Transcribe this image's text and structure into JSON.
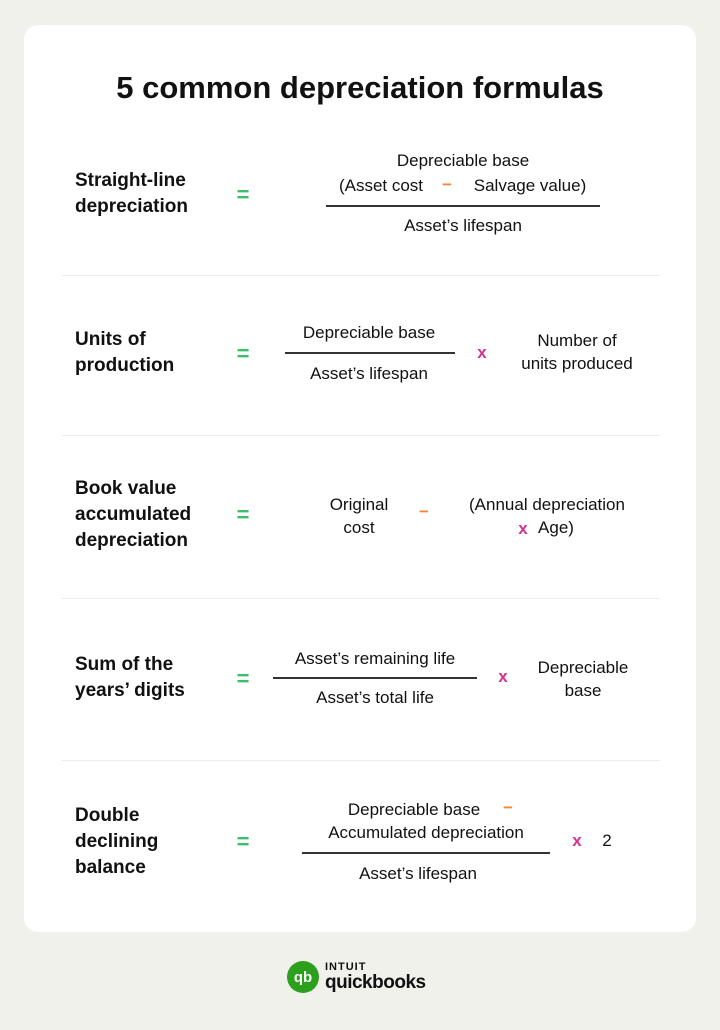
{
  "title": "5 common depreciation formulas",
  "symbols": {
    "equals": "=",
    "minus": "−",
    "times": "x"
  },
  "colors": {
    "equals": "#3dbd6e",
    "minus": "#f5863a",
    "times": "#d4308f",
    "brand": "#2ca01c"
  },
  "formulas": [
    {
      "label": [
        "Straight-line",
        "depreciation"
      ],
      "numerator": [
        "Depreciable base",
        "(Asset cost",
        "Salvage value)"
      ],
      "denominator": "Asset’s lifespan"
    },
    {
      "label": [
        "Units of",
        "production"
      ],
      "numerator": "Depreciable base",
      "denominator": "Asset’s lifespan",
      "multiplier": [
        "Number of",
        "units produced"
      ]
    },
    {
      "label": [
        "Book value",
        "accumulated",
        "depreciation"
      ],
      "left": [
        "Original",
        "cost"
      ],
      "right": [
        "(Annual depreciation",
        "Age)"
      ]
    },
    {
      "label": [
        "Sum of the",
        "years’ digits"
      ],
      "numerator": "Asset’s remaining life",
      "denominator": "Asset’s total life",
      "multiplier": [
        "Depreciable",
        "base"
      ]
    },
    {
      "label": [
        "Double",
        "declining",
        "balance"
      ],
      "numerator": [
        "Depreciable base",
        "Accumulated depreciation"
      ],
      "denominator": "Asset’s lifespan",
      "multiplier": "2"
    }
  ],
  "logo": {
    "icon": "qb",
    "top": "INTUIT",
    "bottom": "quickbooks"
  }
}
